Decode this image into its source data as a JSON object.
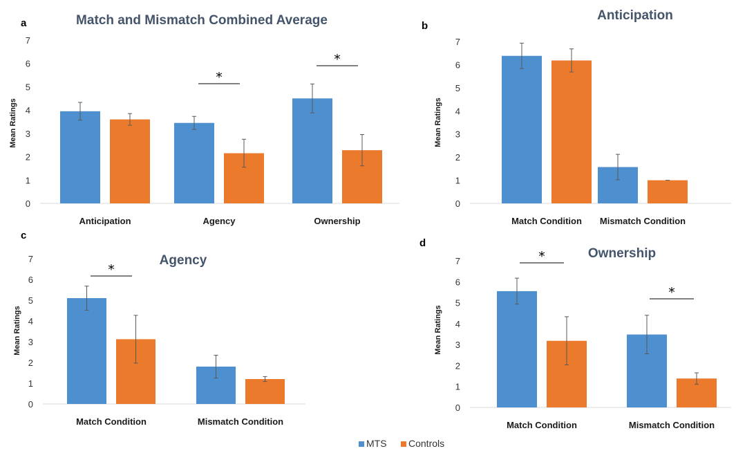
{
  "colors": {
    "mts": "#4e8fcf",
    "controls": "#ec7a2d"
  },
  "legend": {
    "items": [
      "MTS",
      "Controls"
    ]
  },
  "chart_data": [
    {
      "panel": "a",
      "type": "bar",
      "title": "Match and Mismatch Combined Average",
      "ylabel": "Mean Ratings",
      "xlabel": "",
      "ylim": [
        0,
        7
      ],
      "yticks": [
        0,
        1,
        2,
        3,
        4,
        5,
        6,
        7
      ],
      "categories": [
        "Anticipation",
        "Agency",
        "Ownership"
      ],
      "series": [
        {
          "name": "MTS",
          "values": [
            3.95,
            3.45,
            4.5
          ],
          "errors": [
            0.38,
            0.28,
            0.62
          ]
        },
        {
          "name": "Controls",
          "values": [
            3.6,
            2.15,
            2.28
          ],
          "errors": [
            0.25,
            0.6,
            0.67
          ]
        }
      ],
      "significance": [
        1,
        2
      ]
    },
    {
      "panel": "b",
      "type": "bar",
      "title": "Anticipation",
      "ylabel": "Mean Ratings",
      "xlabel": "",
      "ylim": [
        0,
        7
      ],
      "yticks": [
        0,
        1,
        2,
        3,
        4,
        5,
        6,
        7
      ],
      "categories": [
        "Match Condition",
        "Mismatch Condition"
      ],
      "series": [
        {
          "name": "MTS",
          "values": [
            6.38,
            1.57
          ],
          "errors": [
            0.55,
            0.55
          ]
        },
        {
          "name": "Controls",
          "values": [
            6.18,
            1.0
          ],
          "errors": [
            0.5,
            0.0
          ]
        }
      ],
      "significance": []
    },
    {
      "panel": "c",
      "type": "bar",
      "title": "Agency",
      "ylabel": "Mean Ratings",
      "xlabel": "",
      "ylim": [
        0,
        7
      ],
      "yticks": [
        0,
        1,
        2,
        3,
        4,
        5,
        6,
        7
      ],
      "categories": [
        "Match Condition",
        "Mismatch Condition"
      ],
      "series": [
        {
          "name": "MTS",
          "values": [
            5.1,
            1.8
          ],
          "errors": [
            0.58,
            0.55
          ]
        },
        {
          "name": "Controls",
          "values": [
            3.12,
            1.2
          ],
          "errors": [
            1.15,
            0.12
          ]
        }
      ],
      "significance": [
        0
      ]
    },
    {
      "panel": "d",
      "type": "bar",
      "title": "Ownership",
      "ylabel": "Mean Ratings",
      "xlabel": "",
      "ylim": [
        0,
        7
      ],
      "yticks": [
        0,
        1,
        2,
        3,
        4,
        5,
        6,
        7
      ],
      "categories": [
        "Match Condition",
        "Mismatch Condition"
      ],
      "series": [
        {
          "name": "MTS",
          "values": [
            5.55,
            3.48
          ],
          "errors": [
            0.62,
            0.92
          ]
        },
        {
          "name": "Controls",
          "values": [
            3.18,
            1.38
          ],
          "errors": [
            1.15,
            0.27
          ]
        }
      ],
      "significance": [
        0,
        1
      ]
    }
  ]
}
